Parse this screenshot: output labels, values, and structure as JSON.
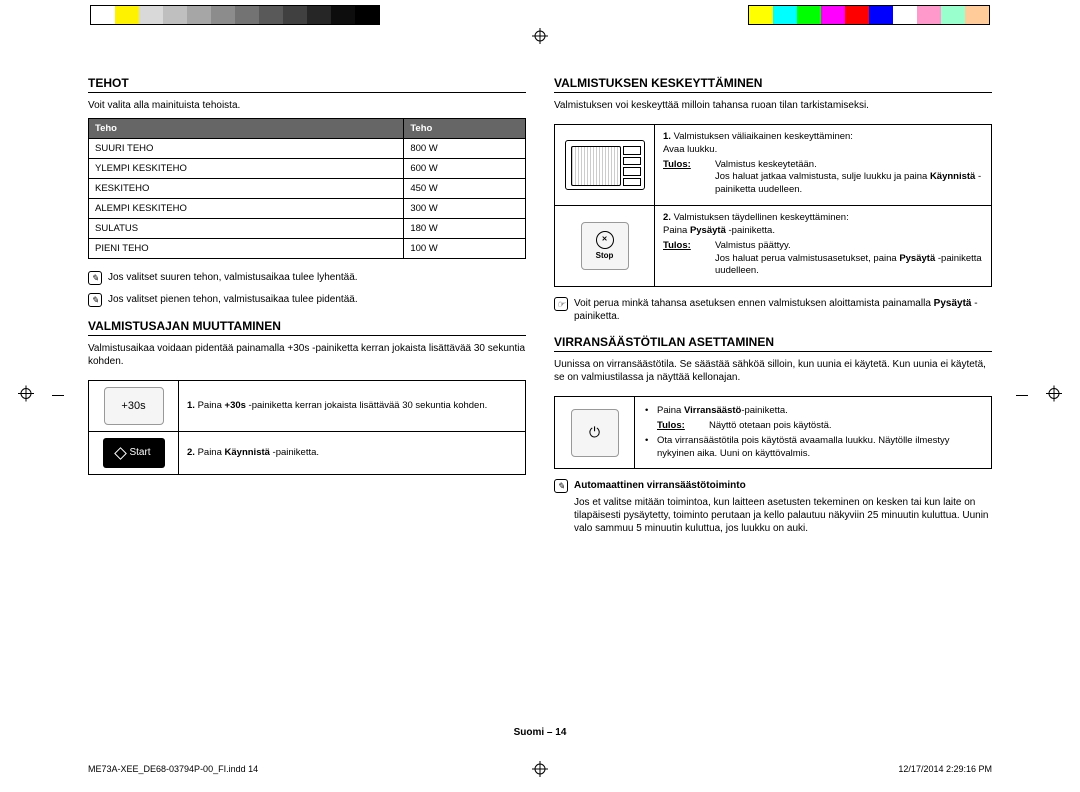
{
  "colorbar1": [
    "#ffffff",
    "#fff200",
    "#d9d9d9",
    "#bfbfbf",
    "#a6a6a6",
    "#8c8c8c",
    "#737373",
    "#595959",
    "#404040",
    "#262626",
    "#0d0d0d",
    "#000000"
  ],
  "colorbar2": [
    "#ffff00",
    "#00ffff",
    "#00ff00",
    "#ff00ff",
    "#ff0000",
    "#0000ff",
    "#ffffff",
    "#ff99cc",
    "#99ffcc",
    "#ffcc99"
  ],
  "left": {
    "section1": {
      "title": "TEHOT",
      "intro": "Voit valita alla mainituista tehoista.",
      "table_header": [
        "Teho",
        "Teho"
      ],
      "table_rows": [
        [
          "SUURI TEHO",
          "800 W"
        ],
        [
          "YLEMPI KESKITEHO",
          "600 W"
        ],
        [
          "KESKITEHO",
          "450 W"
        ],
        [
          "ALEMPI KESKITEHO",
          "300 W"
        ],
        [
          "SULATUS",
          "180 W"
        ],
        [
          "PIENI TEHO",
          "100 W"
        ]
      ],
      "note1": "Jos valitset suuren tehon, valmistusaikaa tulee lyhentää.",
      "note2": "Jos valitset pienen tehon, valmistusaikaa tulee pidentää."
    },
    "section2": {
      "title": "VALMISTUSAJAN MUUTTAMINEN",
      "intro": "Valmistusaikaa voidaan pidentää painamalla +30s -painiketta kerran jokaista lisättävää 30 sekuntia kohden.",
      "step1_num": "1.",
      "step1_pre": "Paina ",
      "step1_bold": "+30s",
      "step1_post": " -painiketta kerran jokaista lisättävää 30 sekuntia kohden.",
      "step1_btn": "+30s",
      "step2_num": "2.",
      "step2_pre": "Paina ",
      "step2_bold": "Käynnistä",
      "step2_post": " -painiketta.",
      "step2_btn": "Start"
    }
  },
  "right": {
    "section1": {
      "title": "VALMISTUKSEN KESKEYTTÄMINEN",
      "intro": "Valmistuksen voi keskeyttää milloin tahansa ruoan tilan tarkistamiseksi.",
      "step1_num": "1.",
      "step1_line1": "Valmistuksen väliaikainen keskeyttäminen:",
      "step1_line2": "Avaa luukku.",
      "step1_tulos": "Tulos:",
      "step1_tulos_text": "Valmistus keskeytetään.",
      "step1_line3a": "Jos haluat jatkaa valmistusta, sulje luukku ja paina ",
      "step1_line3b": "Käynnistä",
      "step1_line3c": " -painiketta uudelleen.",
      "step2_num": "2.",
      "step2_line1": "Valmistuksen täydellinen keskeyttäminen:",
      "step2_line2a": "Paina ",
      "step2_line2b": "Pysäytä",
      "step2_line2c": " -painiketta.",
      "step2_tulos": "Tulos:",
      "step2_tulos_text": "Valmistus päättyy.",
      "step2_line3a": "Jos haluat perua valmistusasetukset, paina ",
      "step2_line3b": "Pysäytä",
      "step2_line3c": " -painiketta uudelleen.",
      "note_pre": "Voit perua minkä tahansa asetuksen ennen valmistuksen aloittamista painamalla ",
      "note_bold": "Pysäytä",
      "note_post": " -painiketta."
    },
    "section2": {
      "title": "VIRRANSÄÄSTÖTILAN ASETTAMINEN",
      "intro": "Uunissa on virransäästötila. Se säästää sähköä silloin, kun uunia ei käytetä. Kun uunia ei käytetä, se on valmiustilassa ja näyttää kellonajan.",
      "bullet1_pre": "Paina ",
      "bullet1_bold": "Virransäästö",
      "bullet1_post": "-painiketta.",
      "tulos": "Tulos:",
      "tulos_text": "Näyttö otetaan pois käytöstä.",
      "bullet2": "Ota virransäästötila pois käytöstä avaamalla luukku. Näytölle ilmestyy nykyinen aika. Uuni on käyttövalmis.",
      "note_title": "Automaattinen virransäästötoiminto",
      "note_body": "Jos et valitse mitään toimintoa, kun laitteen asetusten tekeminen on kesken tai kun laite on tilapäisesti pysäytetty, toiminto perutaan ja kello palautuu näkyviin 25 minuutin kuluttua. Uunin valo sammuu 5 minuutin kuluttua, jos luukku on auki."
    }
  },
  "footer": {
    "center": "Suomi – 14",
    "left": "ME73A-XEE_DE68-03794P-00_FI.indd   14",
    "right": "12/17/2014   2:29:16 PM"
  }
}
